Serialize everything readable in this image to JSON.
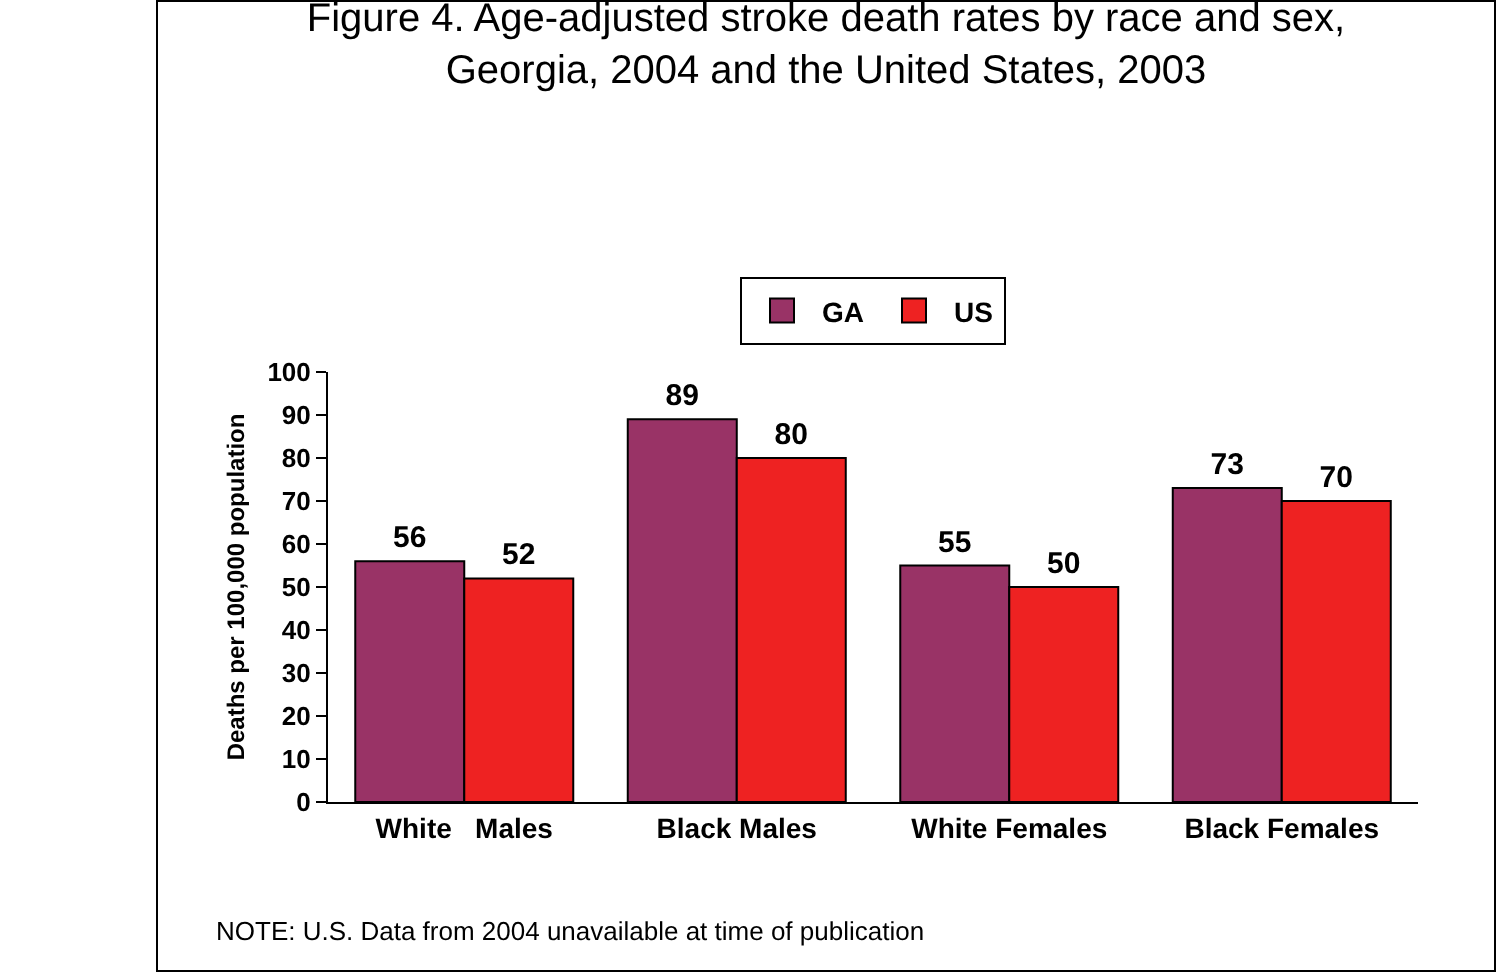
{
  "chart_data": {
    "type": "bar",
    "title": "Figure 4. Age-adjusted stroke death rates by race and sex,\nGeorgia, 2004 and the United States, 2003",
    "ylabel": "Deaths per 100,000 population",
    "categories": [
      "White   Males",
      "Black Males",
      "White Females",
      "Black Females"
    ],
    "series": [
      {
        "name": "GA",
        "color": "#993366",
        "values": [
          56,
          89,
          55,
          73
        ]
      },
      {
        "name": "US",
        "color": "#ee2222",
        "values": [
          52,
          80,
          50,
          70
        ]
      }
    ],
    "ylim": [
      0,
      100
    ],
    "yticks": [
      0,
      10,
      20,
      30,
      40,
      50,
      60,
      70,
      80,
      90,
      100
    ],
    "data_labels": true,
    "legend": "top",
    "grid": false,
    "annotations": [
      "NOTE: U.S. Data from 2004 unavailable at time of publication"
    ]
  }
}
